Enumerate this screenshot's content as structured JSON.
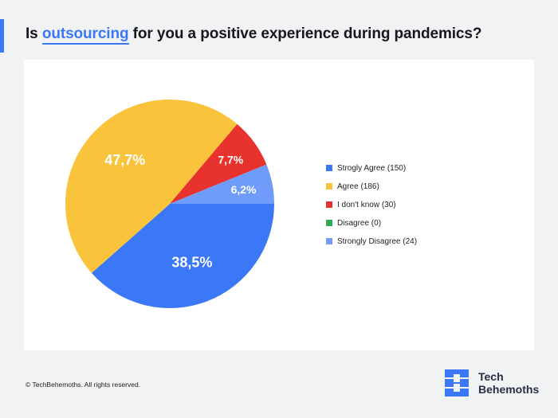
{
  "title": {
    "prefix": "Is ",
    "highlight": "outsourcing",
    "suffix": " for you a positive experience during pandemics?"
  },
  "footer": {
    "copyright": "© TechBehemoths. All rights reserved."
  },
  "brand": {
    "line1": "Tech",
    "line2": "Behemoths"
  },
  "colors": {
    "accent": "#3b78f7",
    "background": "#f1f2f4",
    "card": "#ffffff"
  },
  "chart_data": {
    "type": "pie",
    "title": "",
    "slices": [
      {
        "label": "Strogly Agree (150)",
        "value": 150,
        "percent_label": "38,5%",
        "color": "#3b78f7"
      },
      {
        "label": "Agree (186)",
        "value": 186,
        "percent_label": "47,7%",
        "color": "#f9c43c"
      },
      {
        "label": "I don't know (30)",
        "value": 30,
        "percent_label": "7,7%",
        "color": "#e8322e"
      },
      {
        "label": "Disagree (0)",
        "value": 0,
        "percent_label": "",
        "color": "#2eaa4f"
      },
      {
        "label": "Strongly Disagree (24)",
        "value": 24,
        "percent_label": "6,2%",
        "color": "#6f9bfb"
      }
    ],
    "legend_position": "right"
  }
}
